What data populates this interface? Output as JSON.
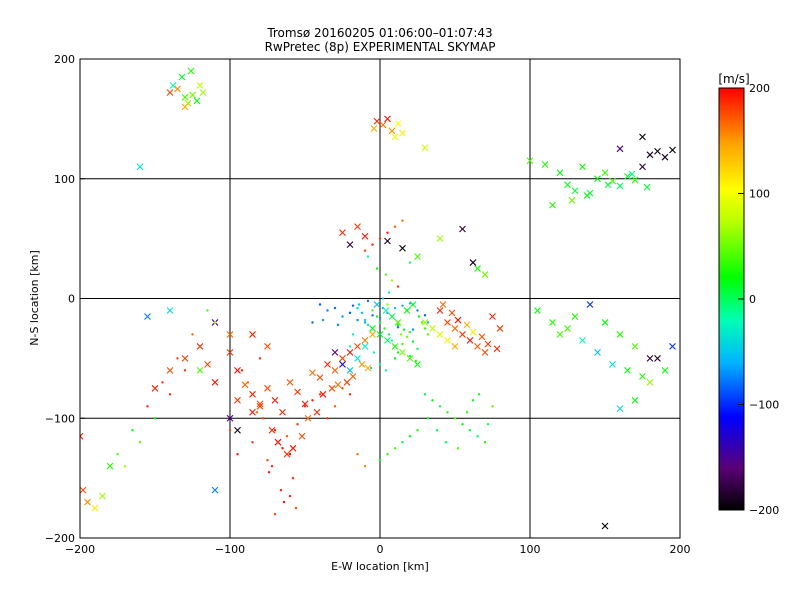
{
  "chart_data": {
    "type": "scatter",
    "title": "Tromsø 20160205 01:06:00–01:07:43",
    "subtitle": "RwPretec (8p) EXPERIMENTAL SKYMAP",
    "xlabel": "E-W location [km]",
    "ylabel": "N-S location [km]",
    "xlim": [
      -200,
      200
    ],
    "ylim": [
      -200,
      200
    ],
    "x_ticks": [
      -200,
      -100,
      0,
      100,
      200
    ],
    "y_ticks": [
      -200,
      -100,
      0,
      100,
      200
    ],
    "x_tick_labels": [
      "−200",
      "−100",
      "0",
      "100",
      "200"
    ],
    "y_tick_labels": [
      "−200",
      "−100",
      "0",
      "100",
      "200"
    ],
    "grid": true,
    "colorbar": {
      "label": "[m/s]",
      "range": [
        -200,
        200
      ],
      "ticks": [
        200,
        100,
        0,
        -100,
        -200
      ],
      "tick_labels": [
        "200",
        "100",
        "0",
        "−100",
        "−200"
      ],
      "colors": [
        "#000000",
        "#5a0078",
        "#0000ff",
        "#00b4ff",
        "#00ffb4",
        "#00ff00",
        "#b4ff00",
        "#ffff00",
        "#ffa000",
        "#ff0000"
      ]
    },
    "series": [
      {
        "marker": "cross",
        "x": [
          -140,
          -135,
          -130,
          -125,
          -128,
          -120,
          -138,
          -132,
          -126,
          -118,
          -122,
          -130
        ],
        "y": [
          172,
          175,
          168,
          170,
          163,
          178,
          178,
          185,
          190,
          172,
          165,
          160
        ],
        "v": [
          180,
          160,
          40,
          50,
          60,
          70,
          -20,
          10,
          30,
          60,
          20,
          150
        ]
      },
      {
        "marker": "cross",
        "x": [
          -2,
          2,
          5,
          8,
          -4,
          12,
          15,
          10,
          30
        ],
        "y": [
          148,
          145,
          150,
          140,
          142,
          146,
          138,
          135,
          126
        ],
        "v": [
          190,
          170,
          195,
          160,
          150,
          110,
          120,
          100,
          80
        ]
      },
      {
        "marker": "cross",
        "x": [
          100,
          110,
          120,
          125,
          130,
          135,
          140,
          145,
          150,
          155,
          160,
          165,
          170,
          175,
          180,
          185,
          190,
          195,
          115,
          128,
          138,
          152,
          168,
          178
        ],
        "y": [
          115,
          112,
          105,
          95,
          90,
          110,
          88,
          100,
          105,
          98,
          94,
          102,
          99,
          110,
          120,
          123,
          118,
          124,
          78,
          82,
          86,
          95,
          104,
          93
        ],
        "v": [
          40,
          30,
          20,
          15,
          10,
          25,
          5,
          20,
          35,
          40,
          0,
          10,
          30,
          -180,
          -190,
          -195,
          -190,
          -200,
          30,
          50,
          20,
          10,
          -10,
          10
        ]
      },
      {
        "marker": "cross",
        "x": [
          175,
          160,
          -160,
          -140,
          -155,
          -110
        ],
        "y": [
          135,
          125,
          110,
          -10,
          -15,
          -20
        ],
        "v": [
          -200,
          -150,
          -40,
          -40,
          -80,
          -150
        ]
      },
      {
        "marker": "cross",
        "x": [
          -120,
          -115,
          -110,
          -100,
          -95,
          -90,
          -85,
          -80,
          -75,
          -70,
          -65,
          -60,
          -55,
          -50,
          -45,
          -40,
          -35,
          -30,
          -25,
          -20,
          -15,
          -10,
          -5,
          -100,
          -95,
          -85,
          -80,
          -72,
          -68,
          -62,
          -58,
          -52,
          -48,
          -42,
          -38,
          -32,
          -28,
          -22,
          -18,
          -12,
          -8
        ],
        "y": [
          -40,
          -55,
          -70,
          -45,
          -60,
          -72,
          -80,
          -90,
          -75,
          -85,
          -95,
          -70,
          -78,
          -88,
          -62,
          -66,
          -55,
          -60,
          -50,
          -45,
          -40,
          -35,
          -30,
          -30,
          -85,
          -95,
          -88,
          -110,
          -120,
          -130,
          -125,
          -115,
          -100,
          -95,
          -80,
          -75,
          -72,
          -70,
          -65,
          -55,
          -58
        ],
        "v": [
          190,
          180,
          195,
          185,
          200,
          175,
          190,
          185,
          180,
          195,
          190,
          175,
          185,
          195,
          170,
          180,
          190,
          175,
          185,
          195,
          180,
          165,
          150,
          170,
          185,
          195,
          180,
          190,
          200,
          185,
          195,
          180,
          170,
          190,
          195,
          180,
          170,
          185,
          175,
          160,
          150
        ]
      },
      {
        "marker": "dot",
        "x": [
          -70,
          -68,
          -65,
          -60,
          -75,
          -72,
          -62,
          -58,
          -66,
          -74,
          -78,
          -82,
          -55,
          -50,
          -45,
          -40,
          -88,
          -92,
          -80,
          -64,
          -70,
          -56,
          -60,
          -85,
          -95,
          -100,
          -30,
          -35,
          -20,
          -25,
          -15,
          -10
        ],
        "y": [
          -110,
          -120,
          -125,
          -130,
          -135,
          -140,
          -115,
          -150,
          -160,
          -145,
          -100,
          -95,
          -105,
          -90,
          -85,
          -80,
          -70,
          -60,
          -50,
          -170,
          -180,
          -175,
          -165,
          -120,
          -130,
          -110,
          -90,
          -100,
          -80,
          -75,
          -130,
          -140
        ],
        "v": [
          190,
          185,
          195,
          200,
          180,
          190,
          175,
          185,
          190,
          195,
          180,
          170,
          185,
          190,
          195,
          180,
          170,
          190,
          185,
          195,
          180,
          175,
          190,
          185,
          195,
          180,
          175,
          185,
          190,
          180,
          170,
          165
        ]
      },
      {
        "marker": "dot",
        "x": [
          -5,
          -2,
          0,
          3,
          6,
          8,
          10,
          12,
          15,
          18,
          20,
          22,
          25,
          -8,
          -10,
          -12,
          -15,
          -18,
          -20,
          5,
          8,
          12,
          16,
          20,
          24,
          28,
          0,
          4,
          -4,
          10,
          14,
          18,
          22,
          -6,
          2,
          6,
          26,
          30,
          32,
          -14
        ],
        "y": [
          -10,
          -15,
          -20,
          -25,
          -30,
          -35,
          -40,
          -45,
          -38,
          -32,
          -28,
          -36,
          -42,
          -22,
          -18,
          -12,
          -8,
          -30,
          -40,
          -5,
          -15,
          -22,
          -26,
          -48,
          -52,
          -20,
          -55,
          -60,
          -45,
          -50,
          -30,
          -10,
          -5,
          -58,
          0,
          5,
          -15,
          -25,
          -30,
          -5
        ],
        "v": [
          40,
          20,
          10,
          30,
          0,
          -20,
          -10,
          20,
          40,
          50,
          30,
          10,
          0,
          -40,
          -50,
          -60,
          -45,
          -30,
          -20,
          60,
          40,
          20,
          10,
          0,
          30,
          40,
          -10,
          -20,
          -30,
          20,
          50,
          30,
          10,
          -40,
          -50,
          -40,
          20,
          30,
          40,
          -60
        ]
      },
      {
        "marker": "dot",
        "x": [
          -40,
          -35,
          -30,
          -25,
          -20,
          -15,
          -10,
          -5,
          0,
          5,
          10,
          15,
          20,
          25,
          30,
          -45,
          -38,
          -28,
          -18,
          -8,
          2,
          12,
          22,
          32
        ],
        "y": [
          -5,
          -10,
          -8,
          -15,
          -12,
          -18,
          -20,
          -14,
          -16,
          -12,
          -8,
          -6,
          -4,
          -10,
          -14,
          -20,
          -18,
          -22,
          -6,
          -2,
          -8,
          -24,
          -26,
          -20
        ],
        "v": [
          -90,
          -80,
          -85,
          -75,
          -90,
          -80,
          -70,
          -85,
          -80,
          -75,
          -60,
          -70,
          -65,
          -80,
          -90,
          -85,
          -75,
          -80,
          -90,
          -85,
          -70,
          -80,
          -75,
          -65
        ]
      },
      {
        "marker": "cross",
        "x": [
          -5,
          0,
          5,
          10,
          15,
          20,
          25,
          -10,
          -15,
          30,
          35,
          40,
          45,
          50,
          -20,
          -25,
          -30,
          12,
          18,
          22,
          8,
          4,
          -2
        ],
        "y": [
          -25,
          -30,
          -35,
          -40,
          -45,
          -50,
          -55,
          -40,
          -50,
          -20,
          -25,
          -30,
          -35,
          -40,
          -60,
          -55,
          -45,
          -20,
          -10,
          -5,
          -15,
          -10,
          -5
        ],
        "v": [
          20,
          10,
          0,
          30,
          50,
          40,
          20,
          -30,
          -40,
          60,
          70,
          90,
          120,
          150,
          -60,
          -120,
          -150,
          40,
          20,
          10,
          0,
          -20,
          -60
        ]
      },
      {
        "marker": "cross",
        "x": [
          40,
          45,
          50,
          55,
          60,
          65,
          70,
          75,
          80,
          42,
          48,
          52,
          58,
          62,
          68,
          72,
          78
        ],
        "y": [
          -10,
          -20,
          -25,
          -30,
          -35,
          -40,
          -45,
          -15,
          -25,
          -5,
          -12,
          -18,
          -22,
          -28,
          -32,
          -38,
          -42
        ],
        "v": [
          190,
          180,
          170,
          185,
          195,
          175,
          180,
          190,
          185,
          170,
          180,
          195,
          150,
          120,
          175,
          185,
          190
        ]
      },
      {
        "marker": "dot",
        "x": [
          30,
          35,
          40,
          45,
          50,
          55,
          60,
          65,
          70,
          75,
          32,
          38,
          44,
          52,
          58,
          62,
          66,
          72,
          25,
          20,
          15,
          10,
          5,
          0
        ],
        "y": [
          -80,
          -85,
          -90,
          -95,
          -100,
          -105,
          -110,
          -115,
          -120,
          -90,
          -100,
          -110,
          -120,
          -125,
          -95,
          -85,
          -80,
          -105,
          -110,
          -115,
          -120,
          -125,
          -130,
          -135
        ],
        "v": [
          10,
          20,
          0,
          30,
          40,
          20,
          10,
          0,
          30,
          40,
          20,
          10,
          0,
          40,
          30,
          20,
          10,
          0,
          30,
          20,
          10,
          40,
          30,
          20
        ]
      },
      {
        "marker": "dot",
        "x": [
          -10,
          -5,
          0,
          5,
          10,
          15,
          20,
          -8,
          -2,
          4,
          8,
          12
        ],
        "y": [
          40,
          45,
          50,
          55,
          60,
          65,
          30,
          35,
          25,
          20,
          15,
          10
        ],
        "v": [
          180,
          190,
          185,
          195,
          175,
          170,
          -10,
          -20,
          20,
          40,
          60,
          190
        ]
      },
      {
        "marker": "cross",
        "x": [
          -25,
          -15,
          -10,
          5,
          15,
          -20,
          25,
          40,
          55,
          62,
          65,
          70
        ],
        "y": [
          55,
          60,
          52,
          48,
          42,
          45,
          35,
          50,
          58,
          30,
          25,
          20
        ],
        "v": [
          190,
          185,
          195,
          -190,
          -200,
          -180,
          40,
          60,
          -180,
          -190,
          30,
          50
        ]
      },
      {
        "marker": "cross",
        "x": [
          105,
          115,
          125,
          135,
          145,
          155,
          165,
          175,
          185,
          195,
          120,
          130,
          140,
          150,
          160,
          170,
          180,
          190
        ],
        "y": [
          -10,
          -20,
          -25,
          -35,
          -45,
          -55,
          -60,
          -65,
          -50,
          -40,
          -30,
          -15,
          -5,
          -20,
          -30,
          -40,
          -50,
          -60
        ],
        "v": [
          20,
          30,
          40,
          -20,
          -60,
          -40,
          20,
          30,
          -190,
          -100,
          40,
          30,
          -100,
          20,
          30,
          40,
          -180,
          20
        ]
      },
      {
        "marker": "cross",
        "x": [
          -200,
          -198,
          -195,
          -190,
          -185,
          -180
        ],
        "y": [
          -115,
          -160,
          -170,
          -175,
          -165,
          -140
        ],
        "v": [
          190,
          180,
          160,
          120,
          60,
          30
        ]
      },
      {
        "marker": "cross",
        "x": [
          -150,
          -140,
          -130,
          -100,
          -95,
          -120,
          -110,
          -85,
          -75
        ],
        "y": [
          -75,
          -60,
          -50,
          -100,
          -110,
          -60,
          -160,
          -30,
          -40
        ],
        "v": [
          190,
          180,
          185,
          -150,
          -190,
          40,
          -80,
          190,
          180
        ]
      },
      {
        "marker": "cross",
        "x": [
          150,
          160,
          170,
          180
        ],
        "y": [
          -190,
          -92,
          -85,
          -70
        ],
        "v": [
          -200,
          -40,
          20,
          60
        ]
      },
      {
        "marker": "dot",
        "x": [
          -170,
          -160,
          -150,
          -140,
          -130,
          -120,
          -110,
          -175,
          -165,
          -155,
          -145,
          -135,
          -125,
          -115
        ],
        "y": [
          -140,
          -120,
          -100,
          -80,
          -60,
          -40,
          -20,
          -130,
          -110,
          -90,
          -70,
          -50,
          -30,
          -10
        ],
        "v": [
          60,
          40,
          20,
          190,
          185,
          180,
          60,
          40,
          20,
          190,
          185,
          180,
          175,
          40
        ]
      }
    ]
  }
}
